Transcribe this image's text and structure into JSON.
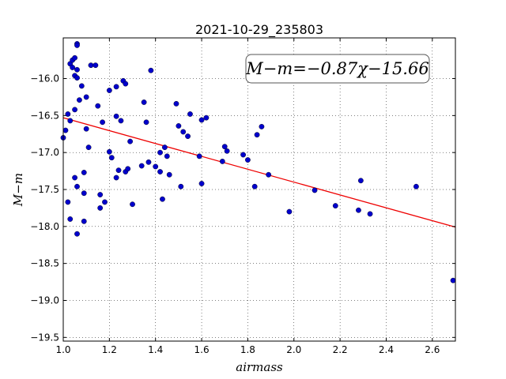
{
  "chart_data": {
    "type": "scatter",
    "title": "2021-10-29_235803",
    "xlabel": "airmass",
    "ylabel": "M−m",
    "xlim": [
      1.0,
      2.7
    ],
    "ylim": [
      -19.55,
      -15.45
    ],
    "y_inverted": true,
    "grid": true,
    "grid_style": "dotted",
    "xticks": [
      1.0,
      1.2,
      1.4,
      1.6,
      1.8,
      2.0,
      2.2,
      2.4,
      2.6
    ],
    "xtick_labels": [
      "1.0",
      "1.2",
      "1.4",
      "1.6",
      "1.8",
      "2.0",
      "2.2",
      "2.4",
      "2.6"
    ],
    "yticks": [
      -16.0,
      -16.5,
      -17.0,
      -17.5,
      -18.0,
      -18.5,
      -19.0,
      -19.5
    ],
    "ytick_labels": [
      "−16.0",
      "−16.5",
      "−17.0",
      "−17.5",
      "−18.0",
      "−18.5",
      "−19.0",
      "−19.5"
    ],
    "annotation": "M−m=−0.87χ−15.66",
    "point_color": "#0000cc",
    "line_color": "#ee0000",
    "fit_line": {
      "slope": -0.87,
      "intercept": -15.66
    },
    "points": [
      {
        "x": 1.0,
        "y": -16.8
      },
      {
        "x": 1.01,
        "y": -16.7
      },
      {
        "x": 1.02,
        "y": -17.67
      },
      {
        "x": 1.03,
        "y": -17.9
      },
      {
        "x": 1.02,
        "y": -16.48
      },
      {
        "x": 1.03,
        "y": -16.57
      },
      {
        "x": 1.03,
        "y": -15.8
      },
      {
        "x": 1.04,
        "y": -15.75
      },
      {
        "x": 1.04,
        "y": -15.85
      },
      {
        "x": 1.05,
        "y": -15.72
      },
      {
        "x": 1.06,
        "y": -15.53
      },
      {
        "x": 1.06,
        "y": -15.55
      },
      {
        "x": 1.05,
        "y": -15.96
      },
      {
        "x": 1.06,
        "y": -15.99
      },
      {
        "x": 1.06,
        "y": -15.88
      },
      {
        "x": 1.05,
        "y": -16.42
      },
      {
        "x": 1.07,
        "y": -16.29
      },
      {
        "x": 1.08,
        "y": -16.1
      },
      {
        "x": 1.1,
        "y": -16.25
      },
      {
        "x": 1.1,
        "y": -16.68
      },
      {
        "x": 1.11,
        "y": -16.93
      },
      {
        "x": 1.05,
        "y": -17.34
      },
      {
        "x": 1.06,
        "y": -17.46
      },
      {
        "x": 1.06,
        "y": -18.1
      },
      {
        "x": 1.09,
        "y": -17.27
      },
      {
        "x": 1.09,
        "y": -17.55
      },
      {
        "x": 1.09,
        "y": -17.93
      },
      {
        "x": 1.12,
        "y": -15.82
      },
      {
        "x": 1.14,
        "y": -15.82
      },
      {
        "x": 1.15,
        "y": -16.37
      },
      {
        "x": 1.17,
        "y": -16.59
      },
      {
        "x": 1.16,
        "y": -17.57
      },
      {
        "x": 1.16,
        "y": -17.75
      },
      {
        "x": 1.18,
        "y": -17.67
      },
      {
        "x": 1.2,
        "y": -16.16
      },
      {
        "x": 1.2,
        "y": -16.99
      },
      {
        "x": 1.21,
        "y": -17.07
      },
      {
        "x": 1.23,
        "y": -16.11
      },
      {
        "x": 1.23,
        "y": -16.51
      },
      {
        "x": 1.23,
        "y": -17.34
      },
      {
        "x": 1.24,
        "y": -17.24
      },
      {
        "x": 1.25,
        "y": -16.57
      },
      {
        "x": 1.26,
        "y": -16.03
      },
      {
        "x": 1.27,
        "y": -16.07
      },
      {
        "x": 1.27,
        "y": -17.26
      },
      {
        "x": 1.28,
        "y": -17.22
      },
      {
        "x": 1.29,
        "y": -16.85
      },
      {
        "x": 1.3,
        "y": -17.7
      },
      {
        "x": 1.34,
        "y": -17.18
      },
      {
        "x": 1.35,
        "y": -16.32
      },
      {
        "x": 1.36,
        "y": -16.59
      },
      {
        "x": 1.37,
        "y": -17.13
      },
      {
        "x": 1.38,
        "y": -15.89
      },
      {
        "x": 1.4,
        "y": -17.19
      },
      {
        "x": 1.42,
        "y": -17.0
      },
      {
        "x": 1.42,
        "y": -17.26
      },
      {
        "x": 1.43,
        "y": -17.63
      },
      {
        "x": 1.44,
        "y": -16.93
      },
      {
        "x": 1.45,
        "y": -17.05
      },
      {
        "x": 1.46,
        "y": -17.3
      },
      {
        "x": 1.49,
        "y": -16.34
      },
      {
        "x": 1.5,
        "y": -16.64
      },
      {
        "x": 1.51,
        "y": -17.46
      },
      {
        "x": 1.52,
        "y": -16.72
      },
      {
        "x": 1.54,
        "y": -16.78
      },
      {
        "x": 1.55,
        "y": -16.48
      },
      {
        "x": 1.59,
        "y": -17.05
      },
      {
        "x": 1.6,
        "y": -16.56
      },
      {
        "x": 1.6,
        "y": -17.42
      },
      {
        "x": 1.62,
        "y": -16.53
      },
      {
        "x": 1.69,
        "y": -17.12
      },
      {
        "x": 1.7,
        "y": -16.92
      },
      {
        "x": 1.71,
        "y": -16.98
      },
      {
        "x": 1.78,
        "y": -17.03
      },
      {
        "x": 1.8,
        "y": -17.1
      },
      {
        "x": 1.83,
        "y": -17.46
      },
      {
        "x": 1.84,
        "y": -16.76
      },
      {
        "x": 1.86,
        "y": -16.65
      },
      {
        "x": 1.89,
        "y": -17.3
      },
      {
        "x": 1.98,
        "y": -17.8
      },
      {
        "x": 2.09,
        "y": -17.51
      },
      {
        "x": 2.18,
        "y": -17.72
      },
      {
        "x": 2.28,
        "y": -17.78
      },
      {
        "x": 2.29,
        "y": -17.38
      },
      {
        "x": 2.33,
        "y": -17.83
      },
      {
        "x": 2.53,
        "y": -17.46
      },
      {
        "x": 2.69,
        "y": -18.73
      }
    ]
  }
}
